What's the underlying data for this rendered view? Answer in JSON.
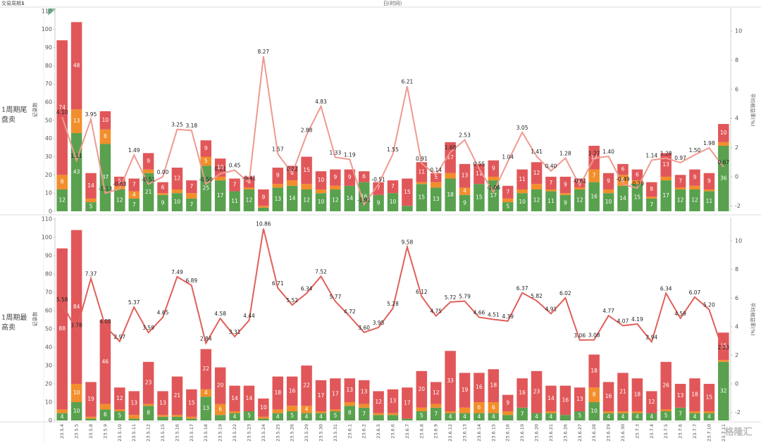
{
  "header": {
    "period_label": "交易周期",
    "period_value": "1",
    "x_title": "日(时间)"
  },
  "watermark": "格隆汇",
  "chart_data": [
    {
      "type": "bar",
      "stacked": true,
      "row_label": "1周期尾盘卖",
      "y_title": "记录数",
      "y2_title": "平均收益率(%)",
      "ylim": [
        0,
        111.5
      ],
      "yticks": [
        0,
        10,
        20,
        30,
        40,
        50,
        60,
        70,
        80,
        90,
        100,
        110
      ],
      "y2lim": [
        -2.37,
        11.55
      ],
      "y2ticks": [
        -2,
        0,
        2,
        4,
        6,
        8,
        10
      ],
      "series": [
        {
          "color": "#59a14f",
          "values": [
            12,
            43,
            5,
            37,
            12,
            7,
            21,
            9,
            10,
            7,
            25,
            17,
            11,
            12,
            2,
            13,
            14,
            12,
            10,
            12,
            14,
            16,
            9,
            10,
            3,
            15,
            13,
            18,
            9,
            15,
            17,
            5,
            10,
            12,
            11,
            9,
            12,
            16,
            10,
            14,
            15,
            7,
            17,
            12,
            12,
            11,
            36
          ]
        },
        {
          "color": "#f28e2b",
          "values": [
            8,
            13,
            2,
            8,
            2,
            4,
            2,
            1,
            2,
            3,
            5,
            2,
            0,
            1,
            1,
            2,
            3,
            3,
            2,
            2,
            0,
            0,
            0,
            0,
            0,
            1,
            3,
            3,
            4,
            0,
            2,
            2,
            2,
            3,
            1,
            1,
            1,
            7,
            2,
            6,
            2,
            1,
            2,
            1,
            2,
            1,
            2
          ]
        },
        {
          "color": "#e15759",
          "values": [
            74,
            48,
            14,
            10,
            5,
            7,
            9,
            6,
            12,
            7,
            9,
            10,
            7,
            6,
            9,
            9,
            8,
            15,
            10,
            9,
            9,
            6,
            7,
            7,
            15,
            11,
            5,
            17,
            13,
            11,
            9,
            7,
            11,
            12,
            7,
            9,
            5,
            13,
            9,
            6,
            6,
            8,
            13,
            7,
            9,
            9,
            10
          ]
        },
        {
          "type": "line",
          "axis": "y2",
          "color": "#ee9a90",
          "values": [
            4.1,
            1.11,
            3.95,
            -1.13,
            -0.83,
            1.49,
            -0.51,
            0,
            3.25,
            3.18,
            -0.5,
            0.21,
            0.45,
            -0.41,
            8.27,
            1.57,
            0.22,
            2.88,
            4.83,
            1.33,
            1.19,
            -1.91,
            -0.51,
            1.55,
            6.21,
            0.91,
            0.14,
            1.68,
            2.53,
            0.55,
            -1.06,
            1.04,
            3.05,
            1.41,
            0.4,
            1.28,
            -0.61,
            1.27,
            1.4,
            -0.49,
            -0.79,
            1.14,
            1.28,
            0.97,
            1.5,
            1.98,
            0.67
          ],
          "value_labels": [
            "4.10",
            "1.11",
            "3.95",
            "-1.13",
            "-0.83",
            "1.49",
            "-0.51",
            "0.00",
            "3.25",
            "3.18",
            "-0.50",
            "0.21",
            "0.45",
            "-0.41",
            "8.27",
            "1.57",
            "0.22",
            "2.88",
            "4.83",
            "1.33",
            "1.19",
            "-1.91",
            "-0.51",
            "1.55",
            "6.21",
            "0.91",
            "0.14",
            "1.68",
            "2.53",
            "0.55",
            "-1.06",
            "1.04",
            "3.05",
            "1.41",
            "0.40",
            "1.28",
            "-0.61",
            "1.27",
            "1.40",
            "-0.49",
            "-0.79",
            "1.14",
            "1.28",
            "0.97",
            "1.50",
            "1.98",
            "0.67"
          ]
        }
      ]
    },
    {
      "type": "bar",
      "stacked": true,
      "row_label": "1周期最高卖",
      "y_title": "记录数",
      "y2_title": "平均收益率(%)",
      "categories": [
        "23.5.4",
        "23.5.5",
        "23.5.8",
        "23.5.9",
        "23.5.10",
        "23.5.11",
        "23.5.12",
        "23.5.15",
        "23.5.16",
        "23.5.17",
        "23.5.18",
        "23.5.19",
        "23.5.22",
        "23.5.23",
        "23.5.24",
        "23.5.25",
        "23.5.26",
        "23.5.29",
        "23.5.30",
        "23.5.31",
        "23.6.1",
        "23.6.2",
        "23.6.5",
        "23.6.6",
        "23.6.7",
        "23.6.8",
        "23.6.9",
        "23.6.12",
        "23.6.13",
        "23.6.14",
        "23.6.15",
        "23.6.16",
        "23.6.19",
        "23.6.20",
        "23.6.21",
        "23.6.26",
        "23.6.27",
        "23.6.28",
        "23.6.29",
        "23.6.30",
        "23.7.3",
        "23.7.4",
        "23.7.5",
        "23.7.6",
        "23.7.7",
        "23.7.10",
        "23.7.11"
      ],
      "ylim": [
        0,
        110.8
      ],
      "yticks": [
        0,
        10,
        20,
        30,
        40,
        50,
        60,
        70,
        80,
        90,
        100,
        110
      ],
      "y2lim": [
        -2.56,
        11.63
      ],
      "y2ticks": [
        -2,
        0,
        2,
        4,
        6,
        8,
        10
      ],
      "series": [
        {
          "color": "#59a14f",
          "values": [
            4,
            10,
            1,
            6,
            5,
            1,
            8,
            2,
            2,
            1,
            13,
            3,
            4,
            5,
            1,
            4,
            5,
            4,
            4,
            5,
            8,
            7,
            3,
            3,
            1,
            5,
            7,
            4,
            4,
            4,
            4,
            3,
            7,
            4,
            4,
            3,
            5,
            10,
            4,
            4,
            4,
            4,
            5,
            7,
            4,
            4,
            32
          ]
        },
        {
          "color": "#f28e2b",
          "values": [
            2,
            10,
            1,
            3,
            1,
            2,
            1,
            1,
            1,
            1,
            4,
            6,
            1,
            0,
            1,
            2,
            3,
            4,
            1,
            1,
            2,
            2,
            1,
            1,
            0,
            2,
            2,
            1,
            3,
            6,
            6,
            2,
            0,
            0,
            1,
            0,
            0,
            8,
            1,
            1,
            1,
            0,
            1,
            0,
            1,
            1,
            1
          ]
        },
        {
          "color": "#e15759",
          "values": [
            88,
            84,
            19,
            46,
            12,
            13,
            23,
            13,
            21,
            15,
            22,
            20,
            14,
            14,
            10,
            18,
            16,
            22,
            17,
            17,
            13,
            13,
            12,
            13,
            17,
            20,
            12,
            33,
            19,
            16,
            18,
            9,
            16,
            23,
            14,
            16,
            13,
            18,
            16,
            21,
            18,
            12,
            26,
            13,
            18,
            15,
            15
          ]
        },
        {
          "type": "line",
          "axis": "y2",
          "color": "#e0605a",
          "values": [
            5.58,
            3.78,
            7.37,
            4.05,
            2.97,
            5.37,
            3.59,
            4.65,
            7.49,
            6.89,
            2.84,
            4.58,
            3.31,
            4.44,
            10.86,
            6.71,
            5.52,
            6.34,
            7.52,
            5.77,
            4.72,
            3.6,
            3.95,
            5.28,
            9.58,
            6.12,
            4.75,
            5.72,
            5.79,
            4.66,
            4.51,
            4.39,
            6.37,
            5.82,
            4.91,
            6.02,
            3.06,
            3.08,
            4.77,
            4.07,
            4.19,
            2.94,
            6.34,
            4.59,
            6.07,
            5.2,
            2.23
          ],
          "value_labels": [
            "5.58",
            "3.78",
            "7.37",
            "4.05",
            "2.97",
            "5.37",
            "3.59",
            "4.65",
            "7.49",
            "6.89",
            "2.84",
            "4.58",
            "3.31",
            "4.44",
            "10.86",
            "6.71",
            "5.52",
            "6.34",
            "7.52",
            "5.77",
            "4.72",
            "3.60",
            "3.95",
            "5.28",
            "9.58",
            "6.12",
            "4.75",
            "5.72",
            "5.79",
            "4.66",
            "4.51",
            "4.39",
            "6.37",
            "5.82",
            "4.91",
            "6.02",
            "3.06",
            "3.08",
            "4.77",
            "4.07",
            "4.19",
            "2.94",
            "6.34",
            "4.59",
            "6.07",
            "5.20",
            "2.23"
          ]
        }
      ]
    }
  ]
}
